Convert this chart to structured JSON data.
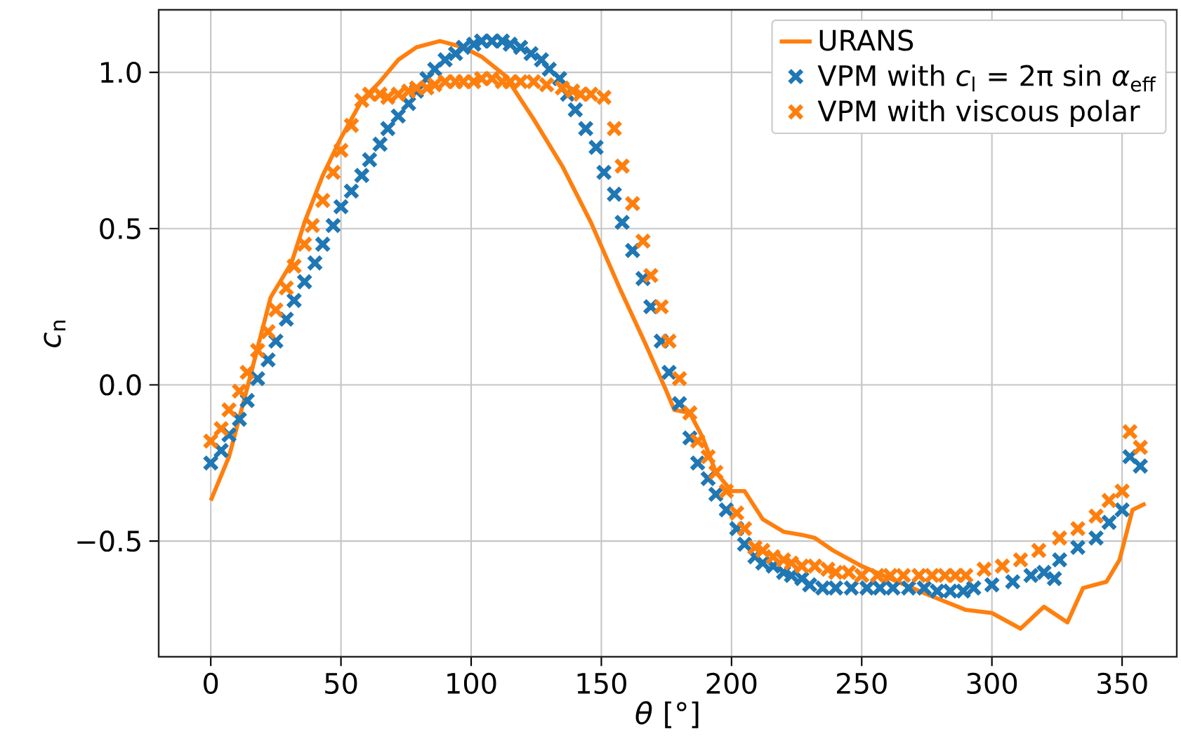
{
  "chart_data": {
    "type": "line",
    "xlabel": "*θ* [°]",
    "ylabel": "*c*$_{n}$",
    "xlim": [
      -20,
      371
    ],
    "ylim": [
      -0.87,
      1.2
    ],
    "xticks": [
      0,
      50,
      100,
      150,
      200,
      250,
      300,
      350
    ],
    "yticks": [
      {
        "value": -0.5,
        "label": "−0.5"
      },
      {
        "value": 0,
        "label": "0.0"
      },
      {
        "value": 0.5,
        "label": "0.5"
      },
      {
        "value": 1,
        "label": "1.0"
      }
    ],
    "grid": true,
    "legend": "top right",
    "series": [
      {
        "name": "URANS",
        "color": "#ff7f0e",
        "line_style": "solid",
        "marker": "none",
        "x": [
          0,
          7,
          14,
          23,
          31,
          36,
          43,
          50,
          58,
          65,
          72,
          79,
          88,
          97,
          104,
          113,
          124,
          135,
          146,
          157,
          167,
          175,
          178,
          184,
          189,
          194,
          200,
          205,
          212,
          220,
          227,
          232,
          239,
          250,
          261,
          275,
          290,
          300,
          311,
          320,
          329,
          335,
          344,
          349,
          354,
          359
        ],
        "values": [
          -0.37,
          -0.23,
          -0.01,
          0.28,
          0.39,
          0.52,
          0.67,
          0.79,
          0.91,
          0.97,
          1.04,
          1.08,
          1.1,
          1.08,
          1.05,
          0.99,
          0.85,
          0.7,
          0.52,
          0.31,
          0.13,
          -0.02,
          -0.08,
          -0.09,
          -0.17,
          -0.28,
          -0.34,
          -0.34,
          -0.43,
          -0.47,
          -0.48,
          -0.49,
          -0.53,
          -0.58,
          -0.62,
          -0.67,
          -0.72,
          -0.73,
          -0.78,
          -0.71,
          -0.76,
          -0.65,
          -0.63,
          -0.56,
          -0.4,
          -0.38
        ]
      },
      {
        "name": "VPM with *c*$_{l}$ = 2π sin *α*$_{eff}$",
        "type": "scatter",
        "color": "#1f77b4",
        "marker": "cross",
        "x": [
          0,
          4,
          7,
          11,
          14,
          18,
          22,
          25,
          29,
          32,
          36,
          40,
          43,
          47,
          50,
          54,
          58,
          61,
          65,
          68,
          72,
          76,
          79,
          83,
          86,
          90,
          94,
          97,
          101,
          104,
          108,
          112,
          115,
          119,
          123,
          127,
          130,
          134,
          137,
          140,
          144,
          148,
          151,
          155,
          158,
          162,
          166,
          169,
          173,
          176,
          180,
          184,
          187,
          191,
          194,
          198,
          202,
          205,
          209,
          212,
          216,
          220,
          223,
          227,
          230,
          235,
          240,
          246,
          252,
          257,
          262,
          268,
          274,
          279,
          284,
          289,
          293,
          300,
          308,
          315,
          320,
          324,
          326,
          333,
          340,
          345,
          350,
          353,
          357
        ],
        "values": [
          -0.25,
          -0.21,
          -0.16,
          -0.11,
          -0.05,
          0.02,
          0.08,
          0.14,
          0.21,
          0.27,
          0.33,
          0.39,
          0.45,
          0.51,
          0.57,
          0.62,
          0.67,
          0.72,
          0.77,
          0.82,
          0.86,
          0.9,
          0.94,
          0.98,
          1.01,
          1.04,
          1.06,
          1.08,
          1.09,
          1.1,
          1.1,
          1.1,
          1.09,
          1.08,
          1.06,
          1.04,
          1.01,
          0.98,
          0.93,
          0.88,
          0.82,
          0.76,
          0.68,
          0.61,
          0.52,
          0.43,
          0.34,
          0.25,
          0.14,
          0.04,
          -0.06,
          -0.17,
          -0.25,
          -0.3,
          -0.35,
          -0.4,
          -0.46,
          -0.51,
          -0.55,
          -0.57,
          -0.58,
          -0.6,
          -0.61,
          -0.62,
          -0.64,
          -0.65,
          -0.65,
          -0.65,
          -0.65,
          -0.65,
          -0.65,
          -0.65,
          -0.65,
          -0.66,
          -0.66,
          -0.66,
          -0.65,
          -0.64,
          -0.63,
          -0.61,
          -0.6,
          -0.62,
          -0.56,
          -0.52,
          -0.49,
          -0.44,
          -0.4,
          -0.23,
          -0.26
        ]
      },
      {
        "name": "VPM with viscous polar",
        "type": "scatter",
        "color": "#ff7f0e",
        "marker": "cross",
        "x": [
          0,
          4,
          7,
          11,
          14,
          18,
          22,
          25,
          29,
          32,
          36,
          39,
          43,
          47,
          50,
          54,
          58,
          61,
          65,
          68,
          72,
          76,
          79,
          83,
          86,
          90,
          94,
          97,
          101,
          104,
          108,
          112,
          115,
          119,
          124,
          129,
          135,
          139,
          142,
          146,
          151,
          155,
          158,
          162,
          166,
          169,
          173,
          176,
          180,
          184,
          187,
          191,
          194,
          198,
          202,
          205,
          209,
          212,
          216,
          220,
          223,
          227,
          232,
          237,
          240,
          245,
          250,
          256,
          261,
          266,
          272,
          277,
          282,
          286,
          290,
          297,
          304,
          311,
          318,
          326,
          333,
          340,
          345,
          350,
          353,
          357
        ],
        "values": [
          -0.18,
          -0.14,
          -0.08,
          -0.02,
          0.04,
          0.11,
          0.17,
          0.24,
          0.31,
          0.38,
          0.45,
          0.51,
          0.59,
          0.68,
          0.75,
          0.83,
          0.91,
          0.93,
          0.93,
          0.92,
          0.93,
          0.94,
          0.95,
          0.95,
          0.96,
          0.97,
          0.97,
          0.97,
          0.97,
          0.98,
          0.98,
          0.97,
          0.97,
          0.97,
          0.97,
          0.96,
          0.95,
          0.94,
          0.93,
          0.93,
          0.92,
          0.82,
          0.7,
          0.58,
          0.46,
          0.35,
          0.25,
          0.14,
          0.02,
          -0.09,
          -0.18,
          -0.23,
          -0.28,
          -0.34,
          -0.41,
          -0.46,
          -0.52,
          -0.53,
          -0.55,
          -0.56,
          -0.57,
          -0.58,
          -0.58,
          -0.59,
          -0.6,
          -0.6,
          -0.61,
          -0.61,
          -0.61,
          -0.61,
          -0.61,
          -0.61,
          -0.61,
          -0.61,
          -0.61,
          -0.59,
          -0.58,
          -0.56,
          -0.53,
          -0.49,
          -0.46,
          -0.42,
          -0.37,
          -0.34,
          -0.15,
          -0.2
        ]
      }
    ]
  }
}
